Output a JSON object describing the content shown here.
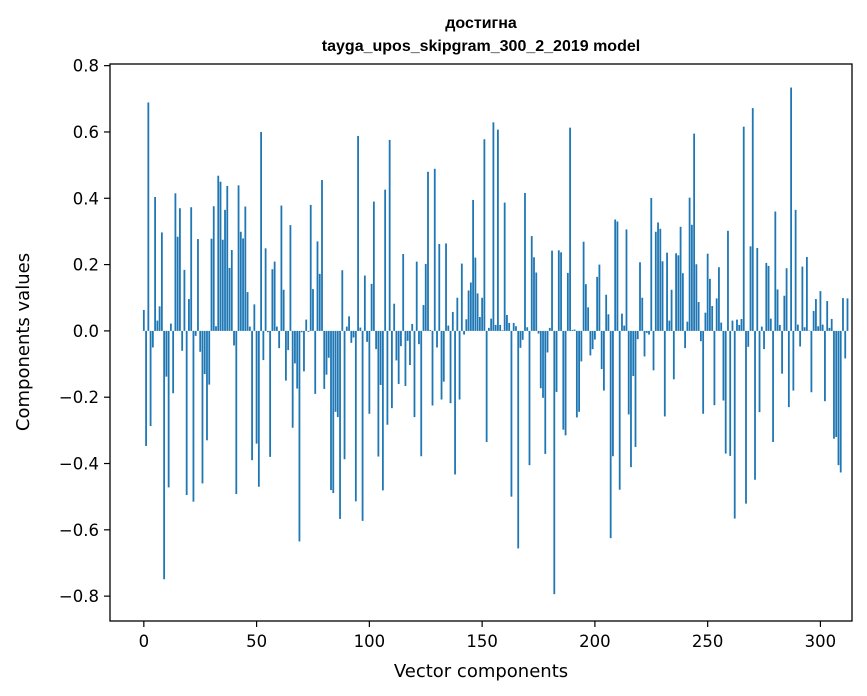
{
  "chart_data": {
    "type": "bar",
    "title_line1": "достигна",
    "title_line2": "tayga_upos_skipgram_300_2_2019 model",
    "xlabel": "Vector components",
    "ylabel": "Components values",
    "xlim": [
      -15,
      314
    ],
    "ylim": [
      -0.875,
      0.805
    ],
    "x_ticks": [
      0,
      50,
      100,
      150,
      200,
      250,
      300
    ],
    "y_ticks": [
      -0.8,
      -0.6,
      -0.4,
      -0.2,
      0.0,
      0.2,
      0.4,
      0.6,
      0.8
    ],
    "x_tick_labels": [
      "0",
      "50",
      "100",
      "150",
      "200",
      "250",
      "300"
    ],
    "y_tick_labels": [
      "−0.8",
      "−0.6",
      "−0.4",
      "−0.2",
      "0.0",
      "0.2",
      "0.4",
      "0.6",
      "0.8"
    ],
    "bar_color": "#1f77b4",
    "values": [
      0.063,
      -0.347,
      0.689,
      -0.287,
      -0.05,
      0.404,
      0.031,
      0.074,
      0.297,
      -0.749,
      -0.138,
      -0.472,
      0.022,
      -0.188,
      0.415,
      0.284,
      0.37,
      -0.06,
      0.184,
      -0.495,
      0.096,
      0.373,
      -0.515,
      -0.015,
      0.277,
      -0.063,
      -0.46,
      -0.13,
      -0.33,
      -0.162,
      0.278,
      0.376,
      0.014,
      0.468,
      0.45,
      0.275,
      0.365,
      0.437,
      0.19,
      0.244,
      -0.044,
      -0.492,
      0.439,
      0.299,
      0.279,
      0.375,
      0.117,
      0.013,
      -0.39,
      0.08,
      -0.34,
      -0.47,
      0.6,
      -0.088,
      0.249,
      -0.004,
      -0.38,
      0.186,
      0.209,
      0.013,
      -0.052,
      0.378,
      0.124,
      -0.15,
      -0.058,
      0.319,
      -0.292,
      -0.098,
      -0.174,
      -0.635,
      -0.004,
      -0.122,
      0.034,
      -0.003,
      0.38,
      0.126,
      -0.19,
      0.27,
      0.172,
      0.455,
      -0.175,
      -0.132,
      -0.081,
      -0.48,
      -0.489,
      -0.244,
      -0.26,
      -0.567,
      0.183,
      -0.387,
      0.013,
      0.044,
      -0.036,
      -0.02,
      -0.514,
      0.588,
      0.01,
      -0.573,
      0.167,
      -0.033,
      -0.25,
      0.142,
      0.39,
      -0.055,
      -0.379,
      -0.163,
      -0.481,
      0.426,
      -0.283,
      0.576,
      -0.233,
      0.082,
      -0.089,
      -0.16,
      -0.046,
      0.232,
      -0.166,
      -0.03,
      -0.103,
      0.021,
      -0.26,
      0.209,
      -0.04,
      -0.378,
      0.078,
      0.202,
      0.48,
      0.003,
      -0.225,
      0.489,
      -0.05,
      0.262,
      -0.207,
      -0.153,
      0.264,
      0.016,
      -0.218,
      0.057,
      -0.433,
      0.1,
      -0.207,
      0.203,
      -0.011,
      0.035,
      0.122,
      0.146,
      0.395,
      0.221,
      0.113,
      0.042,
      0.1,
      0.578,
      -0.335,
      0.009,
      0.037,
      0.629,
      0.018,
      0.607,
      0.018,
      0.002,
      0.387,
      0.048,
      0.024,
      -0.5,
      0.024,
      0.014,
      -0.656,
      -0.051,
      -0.027,
      0.416,
      0.011,
      -0.405,
      0.286,
      0.222,
      0.176,
      -0.008,
      -0.173,
      -0.202,
      -0.371,
      -0.065,
      0.009,
      0.242,
      -0.794,
      -0.184,
      0.243,
      0.237,
      -0.298,
      -0.315,
      0.175,
      0.613,
      0.003,
      0.004,
      -0.261,
      -0.244,
      -0.092,
      0.269,
      0.141,
      0.071,
      -0.074,
      -0.055,
      -0.026,
      0.163,
      0.2,
      -0.115,
      -0.18,
      0.109,
      0.05,
      -0.625,
      -0.378,
      0.336,
      0.33,
      -0.479,
      0.052,
      0.016,
      0.306,
      -0.252,
      -0.411,
      -0.136,
      -0.35,
      -0.025,
      0.207,
      0.1,
      -0.077,
      -0.006,
      -0.011,
      0.401,
      -0.119,
      0.299,
      0.327,
      0.308,
      0.21,
      -0.258,
      0.236,
      0.031,
      0.124,
      -0.146,
      0.234,
      0.228,
      0.314,
      0.174,
      -0.052,
      0.028,
      0.402,
      0.32,
      0.595,
      0.201,
      0.087,
      -0.031,
      -0.25,
      0.055,
      0.233,
      0.157,
      0.075,
      -0.224,
      0.098,
      0.192,
      0.025,
      -0.21,
      -0.37,
      0.302,
      -0.377,
      0.031,
      -0.566,
      0.034,
      0.018,
      0.036,
      0.616,
      -0.521,
      -0.048,
      0.255,
      0.672,
      -0.449,
      0.25,
      -0.245,
      0.013,
      -0.055,
      0.205,
      0.196,
      0.037,
      -0.335,
      0.36,
      0.125,
      0.018,
      -0.129,
      0.106,
      0.189,
      -0.23,
      0.734,
      -0.18,
      0.365,
      0.019,
      -0.047,
      0.194,
      0.011,
      0.223,
      0.001,
      -0.185,
      0.06,
      0.096,
      0.014,
      0.12,
      0.019,
      -0.212,
      0.09,
      0.009,
      0.036,
      -0.325,
      -0.32,
      -0.405,
      -0.427,
      0.099,
      -0.083,
      0.098
    ]
  }
}
